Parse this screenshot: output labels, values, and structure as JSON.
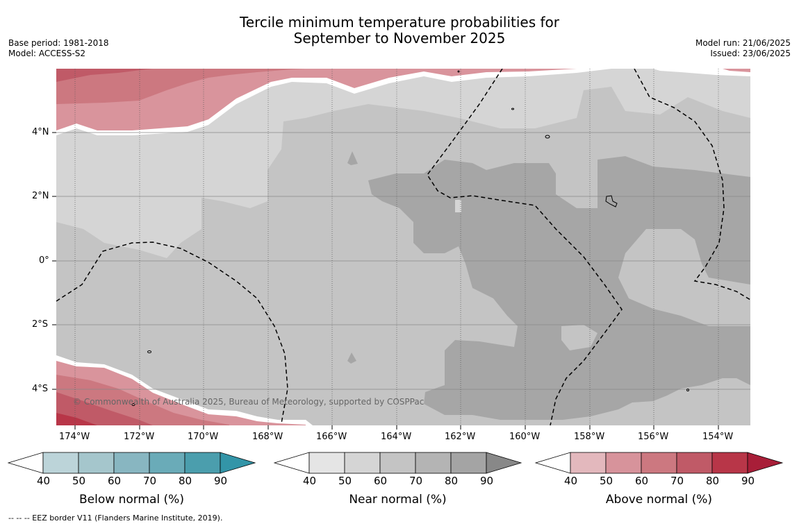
{
  "header": {
    "title_line1": "Tercile minimum temperature probabilities for",
    "title_line2": "September to November 2025",
    "base_period": "Base period: 1981-2018",
    "model": "Model: ACCESS-S2",
    "model_run": "Model run: 21/06/2025",
    "issued": "Issued: 23/06/2025"
  },
  "map": {
    "x_ticks": [
      "174°W",
      "172°W",
      "170°W",
      "168°W",
      "166°W",
      "164°W",
      "162°W",
      "160°W",
      "158°W",
      "156°W",
      "154°W"
    ],
    "y_ticks": [
      "4°N",
      "2°N",
      "0°",
      "2°S",
      "4°S"
    ],
    "copyright": "© Commonwealth of Australia 2025, Bureau of Meteorology, supported by COSPPac",
    "colors": {
      "below": [
        "#bcd4d9",
        "#a5c6cc",
        "#88b6c1",
        "#6aabb8",
        "#4b9ead",
        "#3395a8"
      ],
      "near": [
        "#e5e5e5",
        "#d5d5d5",
        "#c4c4c4",
        "#b4b4b4",
        "#a4a4a4",
        "#888888"
      ],
      "above": [
        "#e3b8bd",
        "#d7939b",
        "#cc7880",
        "#c05a67",
        "#b83648",
        "#a81e38"
      ]
    }
  },
  "colorbars": {
    "ticks": [
      "40",
      "50",
      "60",
      "70",
      "80",
      "90"
    ],
    "below_label": "Below normal (%)",
    "near_label": "Near normal (%)",
    "above_label": "Above normal (%)"
  },
  "footer": {
    "eez": "--  --  -- EEZ border V11 (Flanders Marine Institute, 2019)."
  }
}
